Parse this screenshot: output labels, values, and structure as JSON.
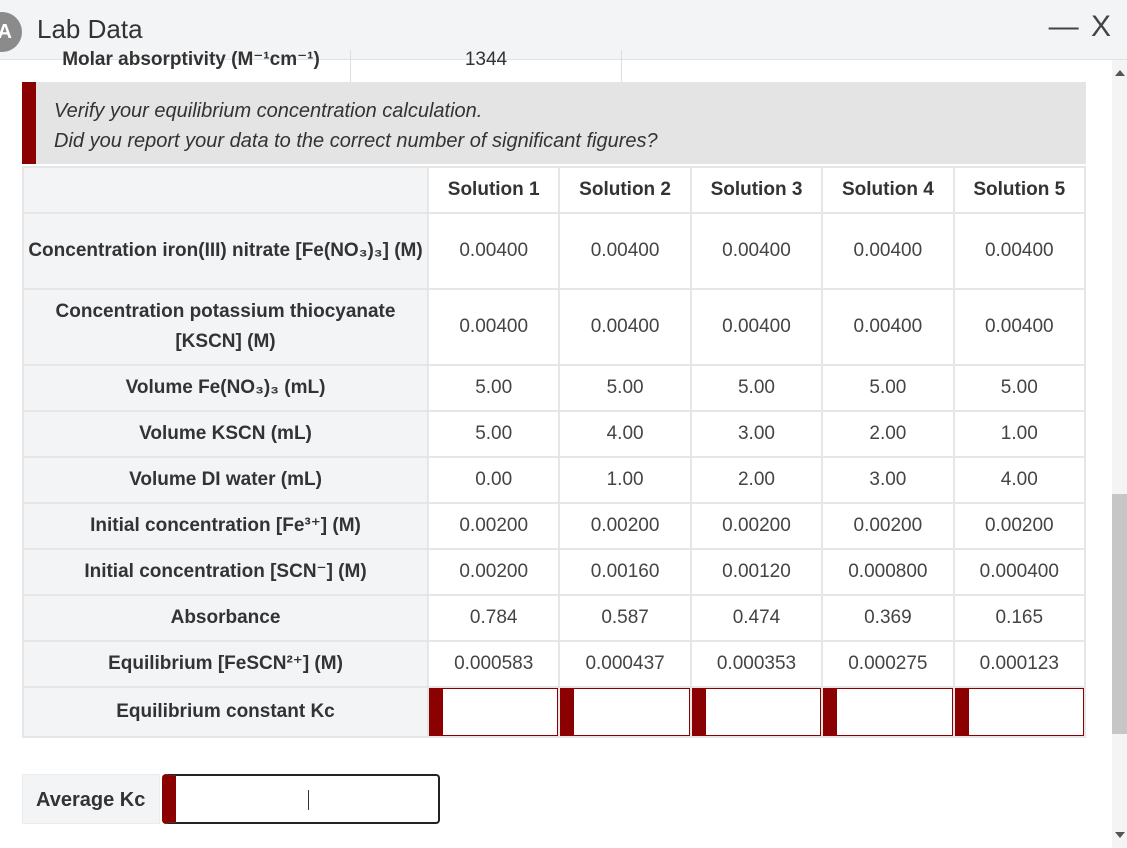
{
  "window": {
    "title": "Lab Data",
    "controls": "— X"
  },
  "partial_row": {
    "label": "Molar absorptivity (M⁻¹cm⁻¹)",
    "value": "1344"
  },
  "alert": {
    "line1": "Verify your equilibrium concentration calculation.",
    "line2": "Did you report your data to the correct number of significant figures?"
  },
  "table": {
    "headers": [
      "Solution 1",
      "Solution 2",
      "Solution 3",
      "Solution 4",
      "Solution 5"
    ],
    "rows": [
      {
        "label": "Concentration iron(III) nitrate [Fe(NO₃)₃] (M)",
        "values": [
          "0.00400",
          "0.00400",
          "0.00400",
          "0.00400",
          "0.00400"
        ]
      },
      {
        "label": "Concentration potassium thiocyanate [KSCN] (M)",
        "values": [
          "0.00400",
          "0.00400",
          "0.00400",
          "0.00400",
          "0.00400"
        ]
      },
      {
        "label": "Volume Fe(NO₃)₃ (mL)",
        "values": [
          "5.00",
          "5.00",
          "5.00",
          "5.00",
          "5.00"
        ]
      },
      {
        "label": "Volume KSCN (mL)",
        "values": [
          "5.00",
          "4.00",
          "3.00",
          "2.00",
          "1.00"
        ]
      },
      {
        "label": "Volume DI water (mL)",
        "values": [
          "0.00",
          "1.00",
          "2.00",
          "3.00",
          "4.00"
        ]
      },
      {
        "label": "Initial concentration [Fe³⁺] (M)",
        "values": [
          "0.00200",
          "0.00200",
          "0.00200",
          "0.00200",
          "0.00200"
        ]
      },
      {
        "label": "Initial concentration [SCN⁻] (M)",
        "values": [
          "0.00200",
          "0.00160",
          "0.00120",
          "0.000800",
          "0.000400"
        ]
      },
      {
        "label": "Absorbance",
        "values": [
          "0.784",
          "0.587",
          "0.474",
          "0.369",
          "0.165"
        ]
      },
      {
        "label": "Equilibrium [FeSCN²⁺] (M)",
        "values": [
          "0.000583",
          "0.000437",
          "0.000353",
          "0.000275",
          "0.000123"
        ]
      },
      {
        "label": "Equilibrium constant Kc",
        "values": [
          "",
          "",
          "",
          "",
          ""
        ]
      }
    ]
  },
  "average": {
    "label": "Average Kc",
    "value": ""
  },
  "colors": {
    "accent": "#8b0000",
    "label_bg": "#f3f4f6",
    "alert_bg": "#e4e4e4"
  }
}
